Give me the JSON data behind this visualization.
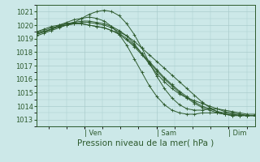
{
  "xlabel": "Pression niveau de la mer( hPa )",
  "bg_color": "#cce8e8",
  "grid_color": "#aacccc",
  "line_color": "#2d5a2d",
  "marker_color": "#2d5a2d",
  "ylim": [
    1012.5,
    1021.5
  ],
  "yticks": [
    1013,
    1014,
    1015,
    1016,
    1017,
    1018,
    1019,
    1020,
    1021
  ],
  "xlabel_fontsize": 7.5,
  "tick_fontsize": 6,
  "day_labels": [
    "| Ven",
    "| Sam",
    "| Dim"
  ],
  "day_positions": [
    0.22,
    0.55,
    0.88
  ],
  "series": [
    [
      1019.4,
      1019.5,
      1019.7,
      1019.9,
      1020.1,
      1020.2,
      1020.3,
      1020.3,
      1020.2,
      1020.1,
      1019.9,
      1019.6,
      1019.2,
      1018.6,
      1017.9,
      1017.1,
      1016.4,
      1015.8,
      1015.3,
      1014.9,
      1014.6,
      1014.4,
      1014.2,
      1014.0,
      1013.8,
      1013.6,
      1013.5,
      1013.4,
      1013.3,
      1013.3
    ],
    [
      1019.3,
      1019.5,
      1019.7,
      1020.0,
      1020.2,
      1020.4,
      1020.5,
      1020.6,
      1020.5,
      1020.3,
      1019.9,
      1019.3,
      1018.5,
      1017.5,
      1016.5,
      1015.5,
      1014.7,
      1014.1,
      1013.7,
      1013.5,
      1013.4,
      1013.4,
      1013.5,
      1013.5,
      1013.5,
      1013.4,
      1013.4,
      1013.4,
      1013.3,
      1013.3
    ],
    [
      1019.2,
      1019.4,
      1019.6,
      1019.8,
      1020.0,
      1020.2,
      1020.5,
      1020.8,
      1021.0,
      1021.1,
      1021.0,
      1020.7,
      1020.1,
      1019.3,
      1018.3,
      1017.2,
      1016.2,
      1015.3,
      1014.6,
      1014.1,
      1013.8,
      1013.7,
      1013.7,
      1013.8,
      1013.8,
      1013.7,
      1013.6,
      1013.5,
      1013.4,
      1013.4
    ],
    [
      1019.4,
      1019.5,
      1019.7,
      1019.9,
      1020.0,
      1020.1,
      1020.2,
      1020.2,
      1020.1,
      1020.0,
      1019.8,
      1019.5,
      1019.2,
      1018.8,
      1018.3,
      1017.8,
      1017.3,
      1016.8,
      1016.3,
      1015.8,
      1015.3,
      1014.8,
      1014.3,
      1013.9,
      1013.6,
      1013.4,
      1013.3,
      1013.3,
      1013.3,
      1013.3
    ],
    [
      1019.5,
      1019.6,
      1019.8,
      1019.9,
      1020.0,
      1020.1,
      1020.1,
      1020.0,
      1019.9,
      1019.8,
      1019.6,
      1019.3,
      1018.9,
      1018.4,
      1017.8,
      1017.2,
      1016.6,
      1016.0,
      1015.5,
      1015.0,
      1014.6,
      1014.2,
      1013.9,
      1013.7,
      1013.5,
      1013.4,
      1013.3,
      1013.3,
      1013.3,
      1013.3
    ],
    [
      1019.5,
      1019.7,
      1019.9,
      1020.0,
      1020.1,
      1020.2,
      1020.1,
      1020.0,
      1019.9,
      1019.8,
      1019.6,
      1019.4,
      1019.0,
      1018.5,
      1017.9,
      1017.3,
      1016.7,
      1016.1,
      1015.6,
      1015.1,
      1014.7,
      1014.3,
      1014.0,
      1013.8,
      1013.6,
      1013.5,
      1013.4,
      1013.3,
      1013.3,
      1013.3
    ]
  ]
}
